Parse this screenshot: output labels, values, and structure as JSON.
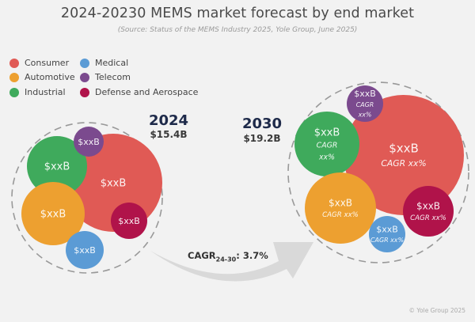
{
  "title": "2024-20230 MEMS market forecast by end market",
  "subtitle": "(Source: Status of the MEMS Industry 2025, Yole Group, June 2025)",
  "legend": [
    {
      "name": "Consumer",
      "color": "#e05a55"
    },
    {
      "name": "Automotive",
      "color": "#eda030"
    },
    {
      "name": "Industrial",
      "color": "#3faa5c"
    },
    {
      "name": "Medical",
      "color": "#5b9bd5"
    },
    {
      "name": "Telecom",
      "color": "#7b4a8e"
    },
    {
      "name": "Defense and Aerospace",
      "color": "#b0134a"
    }
  ],
  "panels": {
    "y2024": {
      "year": "2024",
      "total": "$15.4B"
    },
    "y2030": {
      "year": "2030",
      "total": "$19.2B"
    }
  },
  "arrow": {
    "cagr_prefix": "CAGR",
    "cagr_sub": "24-30",
    "cagr_value": ": 3.7%"
  },
  "copyright": "© Yole Group 2025",
  "chart_data": [
    {
      "type": "bubble",
      "title": "2024",
      "total": "$15.4B",
      "bubbles": [
        {
          "segment": "Consumer",
          "label": "$xxB"
        },
        {
          "segment": "Industrial",
          "label": "$xxB"
        },
        {
          "segment": "Telecom",
          "label": "$xxB"
        },
        {
          "segment": "Automotive",
          "label": "$xxB"
        },
        {
          "segment": "Defense and Aerospace",
          "label": "$xxB"
        },
        {
          "segment": "Medical",
          "label": "$xxB"
        }
      ]
    },
    {
      "type": "bubble",
      "title": "2030",
      "total": "$19.2B",
      "bubbles": [
        {
          "segment": "Consumer",
          "label": "$xxB",
          "cagr": "CAGR xx%"
        },
        {
          "segment": "Industrial",
          "label": "$xxB",
          "cagr": "CAGR xx%"
        },
        {
          "segment": "Telecom",
          "label": "$xxB",
          "cagr": "CAGR xx%"
        },
        {
          "segment": "Automotive",
          "label": "$xxB",
          "cagr": "CAGR xx%"
        },
        {
          "segment": "Defense and Aerospace",
          "label": "$xxB",
          "cagr": "CAGR xx%"
        },
        {
          "segment": "Medical",
          "label": "$xxB",
          "cagr": "CAGR xx%"
        }
      ]
    }
  ]
}
